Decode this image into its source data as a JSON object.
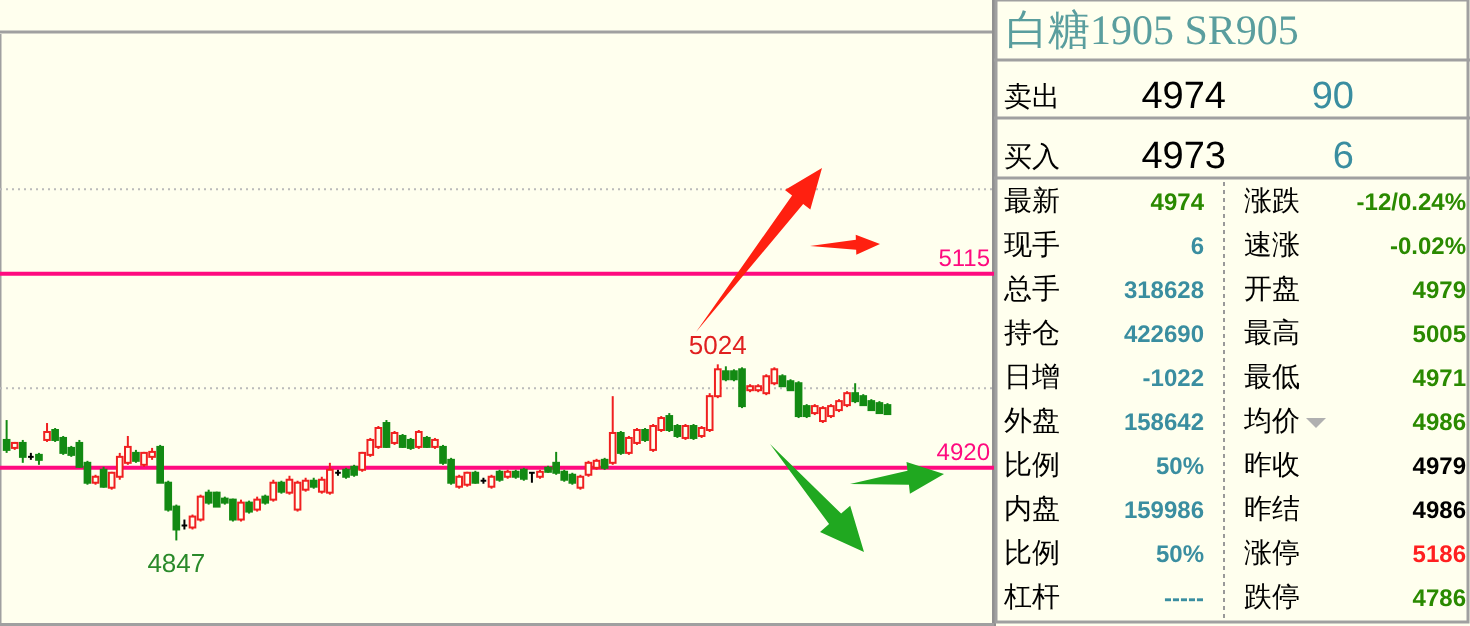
{
  "chart_data": [
    {
      "type": "candlestick",
      "categories": [
        null,
        null,
        null,
        null,
        null,
        null,
        null,
        null,
        null,
        null,
        null,
        null,
        null,
        null,
        null,
        null,
        null,
        null,
        null,
        null,
        null,
        null,
        null,
        null,
        null,
        null,
        null,
        null,
        null,
        null,
        null,
        null,
        null,
        null,
        null,
        null,
        null,
        null,
        null,
        null,
        null,
        null,
        null,
        null,
        null,
        null,
        null,
        null,
        null,
        null,
        null,
        null,
        null,
        null,
        null,
        null,
        null,
        null,
        null,
        null,
        null,
        null,
        null,
        null,
        null,
        null,
        null,
        null,
        null,
        null,
        null,
        null,
        null,
        null,
        null,
        null,
        null,
        null,
        null,
        null,
        null,
        null,
        null,
        null,
        null,
        null,
        null,
        null,
        null,
        null,
        null,
        null,
        null,
        null,
        null,
        null,
        null,
        null,
        null,
        null,
        null,
        null,
        null,
        null,
        null,
        null,
        null,
        null,
        null,
        null
      ],
      "ohlc": [
        [
          4948,
          4968,
          4935,
          4938
        ],
        [
          4940,
          4946,
          4938,
          4945
        ],
        [
          4945,
          4948,
          4925,
          4931
        ],
        [
          4931,
          4935,
          4928,
          4931
        ],
        [
          4933,
          4935,
          4923,
          4928
        ],
        [
          4948,
          4965,
          4946,
          4956
        ],
        [
          4958,
          4960,
          4946,
          4948
        ],
        [
          4950,
          4952,
          4933,
          4935
        ],
        [
          4940,
          4942,
          4931,
          4933
        ],
        [
          4945,
          4948,
          4920,
          4921
        ],
        [
          4925,
          4927,
          4903,
          4905
        ],
        [
          4905,
          4913,
          4903,
          4911
        ],
        [
          4918,
          4921,
          4900,
          4901
        ],
        [
          4900,
          4916,
          4898,
          4915
        ],
        [
          4911,
          4935,
          4908,
          4931
        ],
        [
          4925,
          4952,
          4923,
          4941
        ],
        [
          4935,
          4938,
          4925,
          4927
        ],
        [
          4923,
          4936,
          4921,
          4935
        ],
        [
          4931,
          4940,
          4928,
          4936
        ],
        [
          4941,
          4943,
          4905,
          4905
        ],
        [
          4905,
          4907,
          4876,
          4878
        ],
        [
          4881,
          4883,
          4847,
          4858
        ],
        [
          4862,
          4868,
          4858,
          4862
        ],
        [
          4860,
          4873,
          4858,
          4871
        ],
        [
          4868,
          4893,
          4866,
          4891
        ],
        [
          4895,
          4898,
          4883,
          4885
        ],
        [
          4895,
          4896,
          4881,
          4881
        ],
        [
          4889,
          4891,
          4883,
          4885
        ],
        [
          4888,
          4889,
          4866,
          4868
        ],
        [
          4868,
          4888,
          4866,
          4885
        ],
        [
          4885,
          4887,
          4874,
          4876
        ],
        [
          4878,
          4891,
          4876,
          4888
        ],
        [
          4891,
          4893,
          4883,
          4885
        ],
        [
          4888,
          4908,
          4886,
          4905
        ],
        [
          4905,
          4907,
          4894,
          4896
        ],
        [
          4895,
          4912,
          4893,
          4908
        ],
        [
          4878,
          4907,
          4876,
          4905
        ],
        [
          4898,
          4910,
          4896,
          4907
        ],
        [
          4907,
          4910,
          4899,
          4901
        ],
        [
          4896,
          4911,
          4894,
          4908
        ],
        [
          4895,
          4925,
          4893,
          4918
        ],
        [
          4915,
          4918,
          4912,
          4915
        ],
        [
          4918,
          4920,
          4909,
          4911
        ],
        [
          4921,
          4923,
          4911,
          4913
        ],
        [
          4918,
          4936,
          4916,
          4935
        ],
        [
          4933,
          4950,
          4931,
          4948
        ],
        [
          4941,
          4962,
          4939,
          4960
        ],
        [
          4965,
          4968,
          4940,
          4941
        ],
        [
          4945,
          4957,
          4943,
          4955
        ],
        [
          4952,
          4954,
          4940,
          4941
        ],
        [
          4948,
          4950,
          4938,
          4940
        ],
        [
          4941,
          4958,
          4939,
          4956
        ],
        [
          4950,
          4952,
          4940,
          4941
        ],
        [
          4941,
          4950,
          4939,
          4948
        ],
        [
          4941,
          4943,
          4923,
          4925
        ],
        [
          4928,
          4930,
          4903,
          4905
        ],
        [
          4901,
          4913,
          4899,
          4911
        ],
        [
          4903,
          4916,
          4901,
          4915
        ],
        [
          4915,
          4917,
          4904,
          4905
        ],
        [
          4907,
          4910,
          4904,
          4907
        ],
        [
          4901,
          4913,
          4899,
          4911
        ],
        [
          4916,
          4918,
          4906,
          4908
        ],
        [
          4911,
          4918,
          4909,
          4916
        ],
        [
          4916,
          4918,
          4909,
          4911
        ],
        [
          4918,
          4920,
          4907,
          4909
        ],
        [
          4915,
          4915,
          4905,
          4915
        ],
        [
          4911,
          4918,
          4909,
          4916
        ],
        [
          4920,
          4922,
          4915,
          4916
        ],
        [
          4925,
          4936,
          4913,
          4915
        ],
        [
          4916,
          4918,
          4906,
          4908
        ],
        [
          4913,
          4915,
          4903,
          4905
        ],
        [
          4900,
          4913,
          4898,
          4911
        ],
        [
          4913,
          4927,
          4911,
          4925
        ],
        [
          4920,
          4929,
          4918,
          4927
        ],
        [
          4928,
          4930,
          4918,
          4920
        ],
        [
          4925,
          4992,
          4923,
          4955
        ],
        [
          4955,
          4957,
          4933,
          4935
        ],
        [
          4935,
          4952,
          4933,
          4950
        ],
        [
          4945,
          4960,
          4943,
          4958
        ],
        [
          4958,
          4960,
          4946,
          4948
        ],
        [
          4938,
          4964,
          4936,
          4962
        ],
        [
          4958,
          4972,
          4956,
          4970
        ],
        [
          4972,
          4975,
          4956,
          4958
        ],
        [
          4962,
          4964,
          4950,
          4952
        ],
        [
          4950,
          4964,
          4948,
          4962
        ],
        [
          4962,
          4964,
          4948,
          4950
        ],
        [
          4952,
          4962,
          4950,
          4960
        ],
        [
          4958,
          4995,
          4956,
          4992
        ],
        [
          4992,
          5024,
          4990,
          5019
        ],
        [
          5017,
          5022,
          5007,
          5009
        ],
        [
          5017,
          5019,
          5007,
          5009
        ],
        [
          5019,
          5021,
          4980,
          4982
        ],
        [
          4998,
          5004,
          4996,
          5002
        ],
        [
          4998,
          5004,
          4996,
          5002
        ],
        [
          4995,
          5014,
          4993,
          5012
        ],
        [
          5005,
          5021,
          5003,
          5019
        ],
        [
          5012,
          5014,
          5002,
          5002
        ],
        [
          5007,
          5009,
          4998,
          4998
        ],
        [
          5005,
          5007,
          4970,
          4972
        ],
        [
          4982,
          4984,
          4970,
          4972
        ],
        [
          4975,
          4984,
          4973,
          4982
        ],
        [
          4967,
          4982,
          4965,
          4980
        ],
        [
          4972,
          4984,
          4970,
          4982
        ],
        [
          4978,
          4989,
          4976,
          4987
        ],
        [
          4983,
          4997,
          4981,
          4995
        ],
        [
          4995,
          5005,
          4985,
          4987
        ],
        [
          4992,
          4994,
          4983,
          4983
        ],
        [
          4987,
          4989,
          4978,
          4978
        ],
        [
          4985,
          4987,
          4975,
          4975
        ],
        [
          4983,
          4985,
          4974,
          4974
        ]
      ],
      "ylim": [
        4761,
        5356
      ],
      "yticks": [
        {
          "value": 5000,
          "label": null
        },
        {
          "value": 5200,
          "label": null
        }
      ],
      "grid": "y",
      "ref_lines": [
        {
          "axis": "y",
          "value": 5115,
          "label": "5115",
          "color": "#ff0a7f"
        },
        {
          "axis": "y",
          "value": 4920,
          "label": "4920",
          "color": "#ff0a7f"
        }
      ],
      "annotations": [
        {
          "text": "5024",
          "y": 5024
        },
        {
          "text": "4847",
          "y": 4847
        }
      ]
    },
    {
      "type": "other",
      "title": "白糖1905 SR905",
      "annotations": [
        "卖出",
        "4974",
        "90",
        "买入",
        "4973",
        "6",
        "最新",
        "4974",
        "涨跌",
        "-12/0.24%",
        "现手",
        "6",
        "速涨",
        "-0.02%",
        "总手",
        "318628",
        "开盘",
        "4979",
        "持仓",
        "422690",
        "最高",
        "5005",
        "日增",
        "-1022",
        "最低",
        "4971",
        "外盘",
        "158642",
        "均价",
        "4986",
        "比例",
        "50%",
        "昨收",
        "4979",
        "内盘",
        "159986",
        "昨结",
        "4986",
        "比例",
        "50%",
        "涨停",
        "5186",
        "杠杆",
        "-----",
        "跌停",
        "4786"
      ]
    }
  ]
}
